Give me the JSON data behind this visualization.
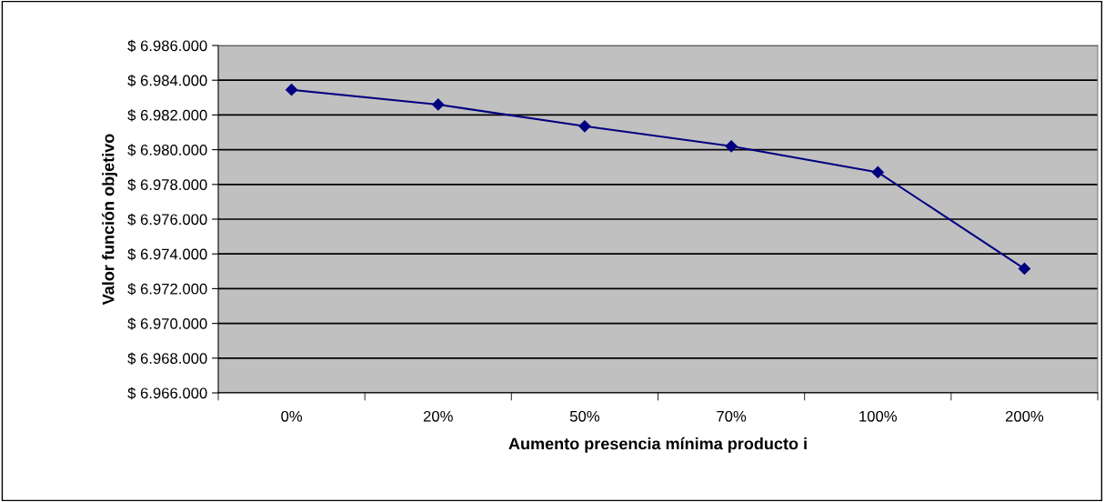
{
  "chart_data": {
    "type": "line",
    "xlabel": "Aumento presencia mínima producto i",
    "ylabel": "Valor función objetivo",
    "categories": [
      "0%",
      "20%",
      "50%",
      "70%",
      "100%",
      "200%"
    ],
    "series": [
      {
        "color": "#000080",
        "values": [
          6983450,
          6982600,
          6981350,
          6980200,
          6978700,
          6973150
        ]
      }
    ],
    "ylim": [
      6966000,
      6986000
    ],
    "yticks": [
      {
        "value": 6966000,
        "label": "$ 6.966.000"
      },
      {
        "value": 6968000,
        "label": "$ 6.968.000"
      },
      {
        "value": 6970000,
        "label": "$ 6.970.000"
      },
      {
        "value": 6972000,
        "label": "$ 6.972.000"
      },
      {
        "value": 6974000,
        "label": "$ 6.974.000"
      },
      {
        "value": 6976000,
        "label": "$ 6.976.000"
      },
      {
        "value": 6978000,
        "label": "$ 6.978.000"
      },
      {
        "value": 6980000,
        "label": "$ 6.980.000"
      },
      {
        "value": 6982000,
        "label": "$ 6.982.000"
      },
      {
        "value": 6984000,
        "label": "$ 6.984.000"
      },
      {
        "value": 6986000,
        "label": "$ 6.986.000"
      }
    ],
    "grid": "y",
    "marker": "diamond",
    "line_style": "solid"
  }
}
